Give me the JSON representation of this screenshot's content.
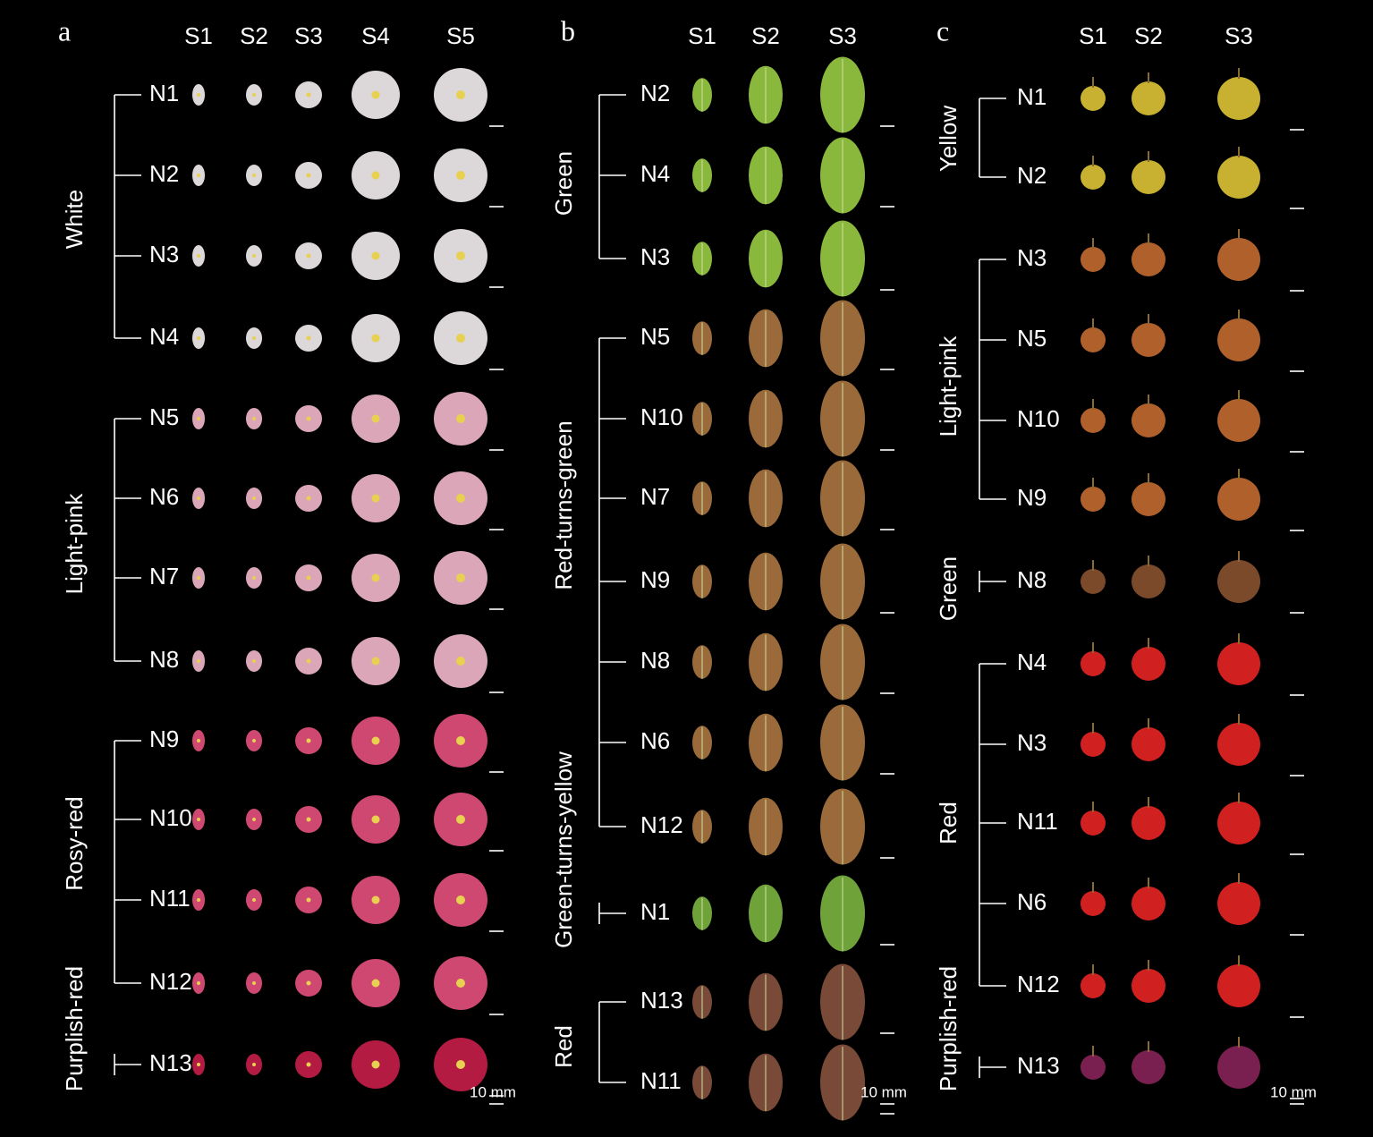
{
  "panels": [
    {
      "label": "a",
      "columns": [
        "S1",
        "S2",
        "S3",
        "S4",
        "S5"
      ],
      "scale_label": "10 mm",
      "groups": [
        {
          "name": "White",
          "rows": [
            "N1",
            "N2",
            "N3",
            "N4"
          ]
        },
        {
          "name": "Light-pink",
          "rows": [
            "N5",
            "N6",
            "N7",
            "N8"
          ]
        },
        {
          "name": "Rosy-red",
          "rows": [
            "N9",
            "N10",
            "N11",
            "N12"
          ]
        },
        {
          "name": "Purplish-red",
          "rows": [
            "N13"
          ]
        }
      ]
    },
    {
      "label": "b",
      "columns": [
        "S1",
        "S2",
        "S3"
      ],
      "scale_label": "10 mm",
      "groups": [
        {
          "name": "Green",
          "rows": [
            "N2",
            "N4",
            "N3"
          ]
        },
        {
          "name": "Red-turns-green",
          "rows": [
            "N5",
            "N10",
            "N7",
            "N9",
            "N8",
            "N6",
            "N12"
          ]
        },
        {
          "name": "Green-turns-yellow",
          "rows": [
            "N1"
          ]
        },
        {
          "name": "Red",
          "rows": [
            "N13",
            "N11"
          ]
        }
      ]
    },
    {
      "label": "c",
      "columns": [
        "S1",
        "S2",
        "S3"
      ],
      "scale_label": "10 mm",
      "groups": [
        {
          "name": "Yellow",
          "rows": [
            "N1",
            "N2"
          ]
        },
        {
          "name": "Light-pink",
          "rows": [
            "N3",
            "N5",
            "N10",
            "N9"
          ]
        },
        {
          "name": "Green",
          "rows": [
            "N8"
          ]
        },
        {
          "name": "Red",
          "rows": [
            "N4",
            "N3",
            "N11",
            "N6",
            "N12"
          ]
        },
        {
          "name": "Purplish-red",
          "rows": [
            "N13"
          ]
        }
      ]
    }
  ]
}
